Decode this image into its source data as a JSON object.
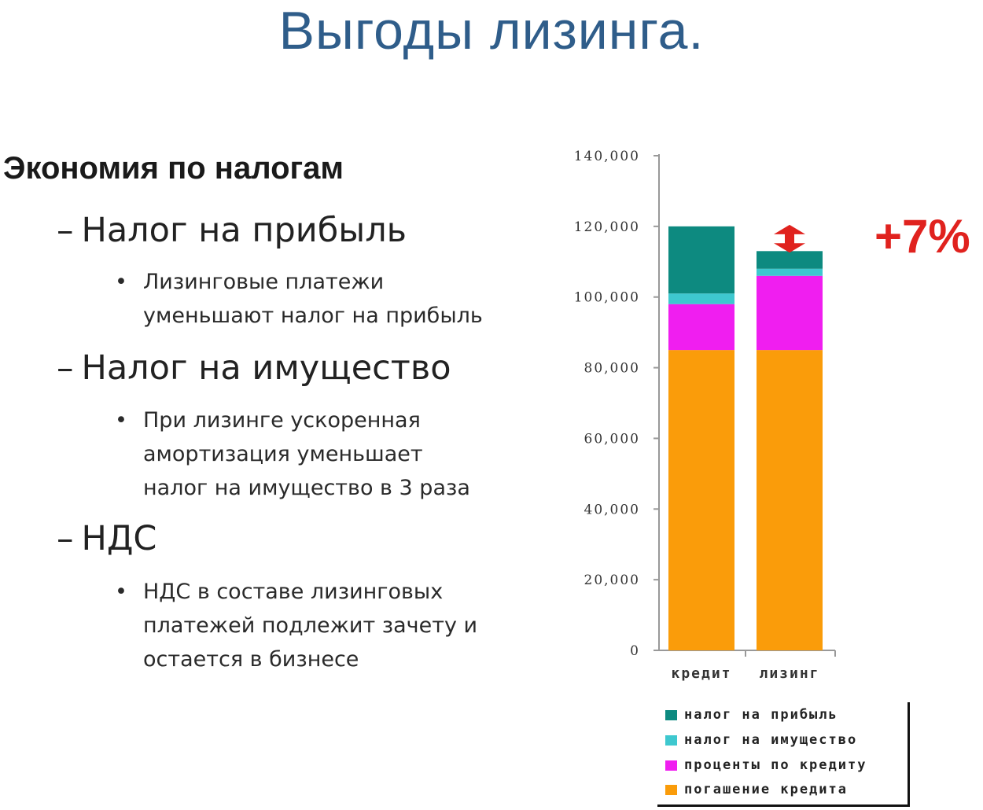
{
  "slide": {
    "title": "Выгоды лизинга.",
    "heading": "Экономия по налогам",
    "points": [
      {
        "dash": "–",
        "label": "Налог на прибыль",
        "bullet_lines": [
          "Лизинговые платежи",
          "уменьшают налог на прибыль"
        ]
      },
      {
        "dash": "–",
        "label": "Налог на имущество",
        "bullet_lines": [
          "При лизинге ускоренная",
          "амортизация  уменьшает",
          "налог на имущество в 3 раза"
        ]
      },
      {
        "dash": "–",
        "label": "НДС",
        "bullet_lines": [
          "НДС в составе лизинговых",
          "платежей подлежит зачету и",
          "остается в бизнесе"
        ]
      }
    ],
    "bullet_glyph": "•"
  },
  "chart_data": {
    "type": "bar",
    "stacked": true,
    "categories": [
      "кредит",
      "лизинг"
    ],
    "series": [
      {
        "name": "погашение кредита",
        "color": "#fa9c0a",
        "values": [
          85000,
          85000
        ]
      },
      {
        "name": "проценты по кредиту",
        "color": "#f01ef0",
        "values": [
          13000,
          21000
        ]
      },
      {
        "name": "налог на имущество",
        "color": "#3ec8cf",
        "values": [
          3000,
          2000
        ]
      },
      {
        "name": "налог на прибыль",
        "color": "#0d8a80",
        "values": [
          19000,
          5000
        ]
      }
    ],
    "y_ticks": [
      "0",
      "20,000",
      "40,000",
      "60,000",
      "80,000",
      "100,000",
      "120,000",
      "140,000"
    ],
    "ylim": [
      0,
      140000
    ],
    "legend_order": [
      "налог на прибыль",
      "налог на имущество",
      "проценты по кредиту",
      "погашение кредита"
    ],
    "legend_position": "bottom",
    "annotation": "+7%",
    "annotation_color": "#e0221e",
    "grid": false
  }
}
